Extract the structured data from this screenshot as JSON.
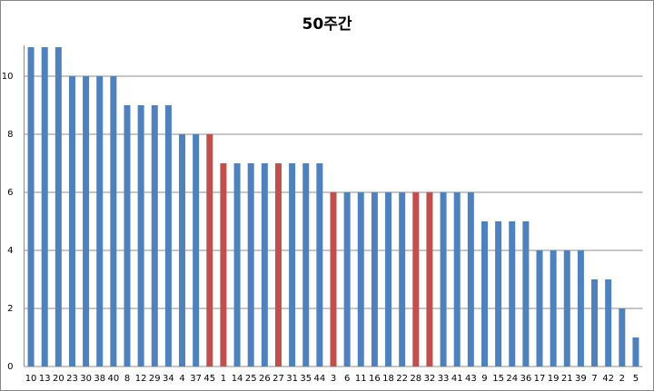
{
  "chart_data": {
    "type": "bar",
    "title": "50주간",
    "categories": [
      "10",
      "13",
      "20",
      "23",
      "30",
      "38",
      "40",
      "8",
      "12",
      "29",
      "34",
      "4",
      "37",
      "45",
      "1",
      "14",
      "25",
      "26",
      "27",
      "31",
      "35",
      "44",
      "3",
      "6",
      "11",
      "16",
      "18",
      "22",
      "28",
      "32",
      "33",
      "41",
      "43",
      "9",
      "15",
      "24",
      "36",
      "17",
      "19",
      "21",
      "39",
      "7",
      "42",
      "2",
      "5"
    ],
    "values": [
      11,
      11,
      11,
      10,
      10,
      10,
      10,
      9,
      9,
      9,
      9,
      8,
      8,
      8,
      7,
      7,
      7,
      7,
      7,
      7,
      7,
      7,
      6,
      6,
      6,
      6,
      6,
      6,
      6,
      6,
      6,
      6,
      6,
      5,
      5,
      5,
      5,
      4,
      4,
      4,
      4,
      3,
      3,
      2,
      1
    ],
    "colors": [
      "#4f81bd",
      "#4f81bd",
      "#4f81bd",
      "#4f81bd",
      "#4f81bd",
      "#4f81bd",
      "#4f81bd",
      "#4f81bd",
      "#4f81bd",
      "#4f81bd",
      "#4f81bd",
      "#4f81bd",
      "#4f81bd",
      "#c0504d",
      "#c0504d",
      "#4f81bd",
      "#4f81bd",
      "#4f81bd",
      "#c0504d",
      "#4f81bd",
      "#4f81bd",
      "#4f81bd",
      "#c0504d",
      "#4f81bd",
      "#4f81bd",
      "#4f81bd",
      "#4f81bd",
      "#4f81bd",
      "#c0504d",
      "#c0504d",
      "#4f81bd",
      "#4f81bd",
      "#4f81bd",
      "#4f81bd",
      "#4f81bd",
      "#4f81bd",
      "#4f81bd",
      "#4f81bd",
      "#4f81bd",
      "#4f81bd",
      "#4f81bd",
      "#4f81bd",
      "#4f81bd",
      "#4f81bd",
      "#4f81bd"
    ],
    "ylim": [
      0,
      11
    ],
    "yticks": [
      0,
      2,
      4,
      6,
      8,
      10
    ],
    "grid": true
  }
}
